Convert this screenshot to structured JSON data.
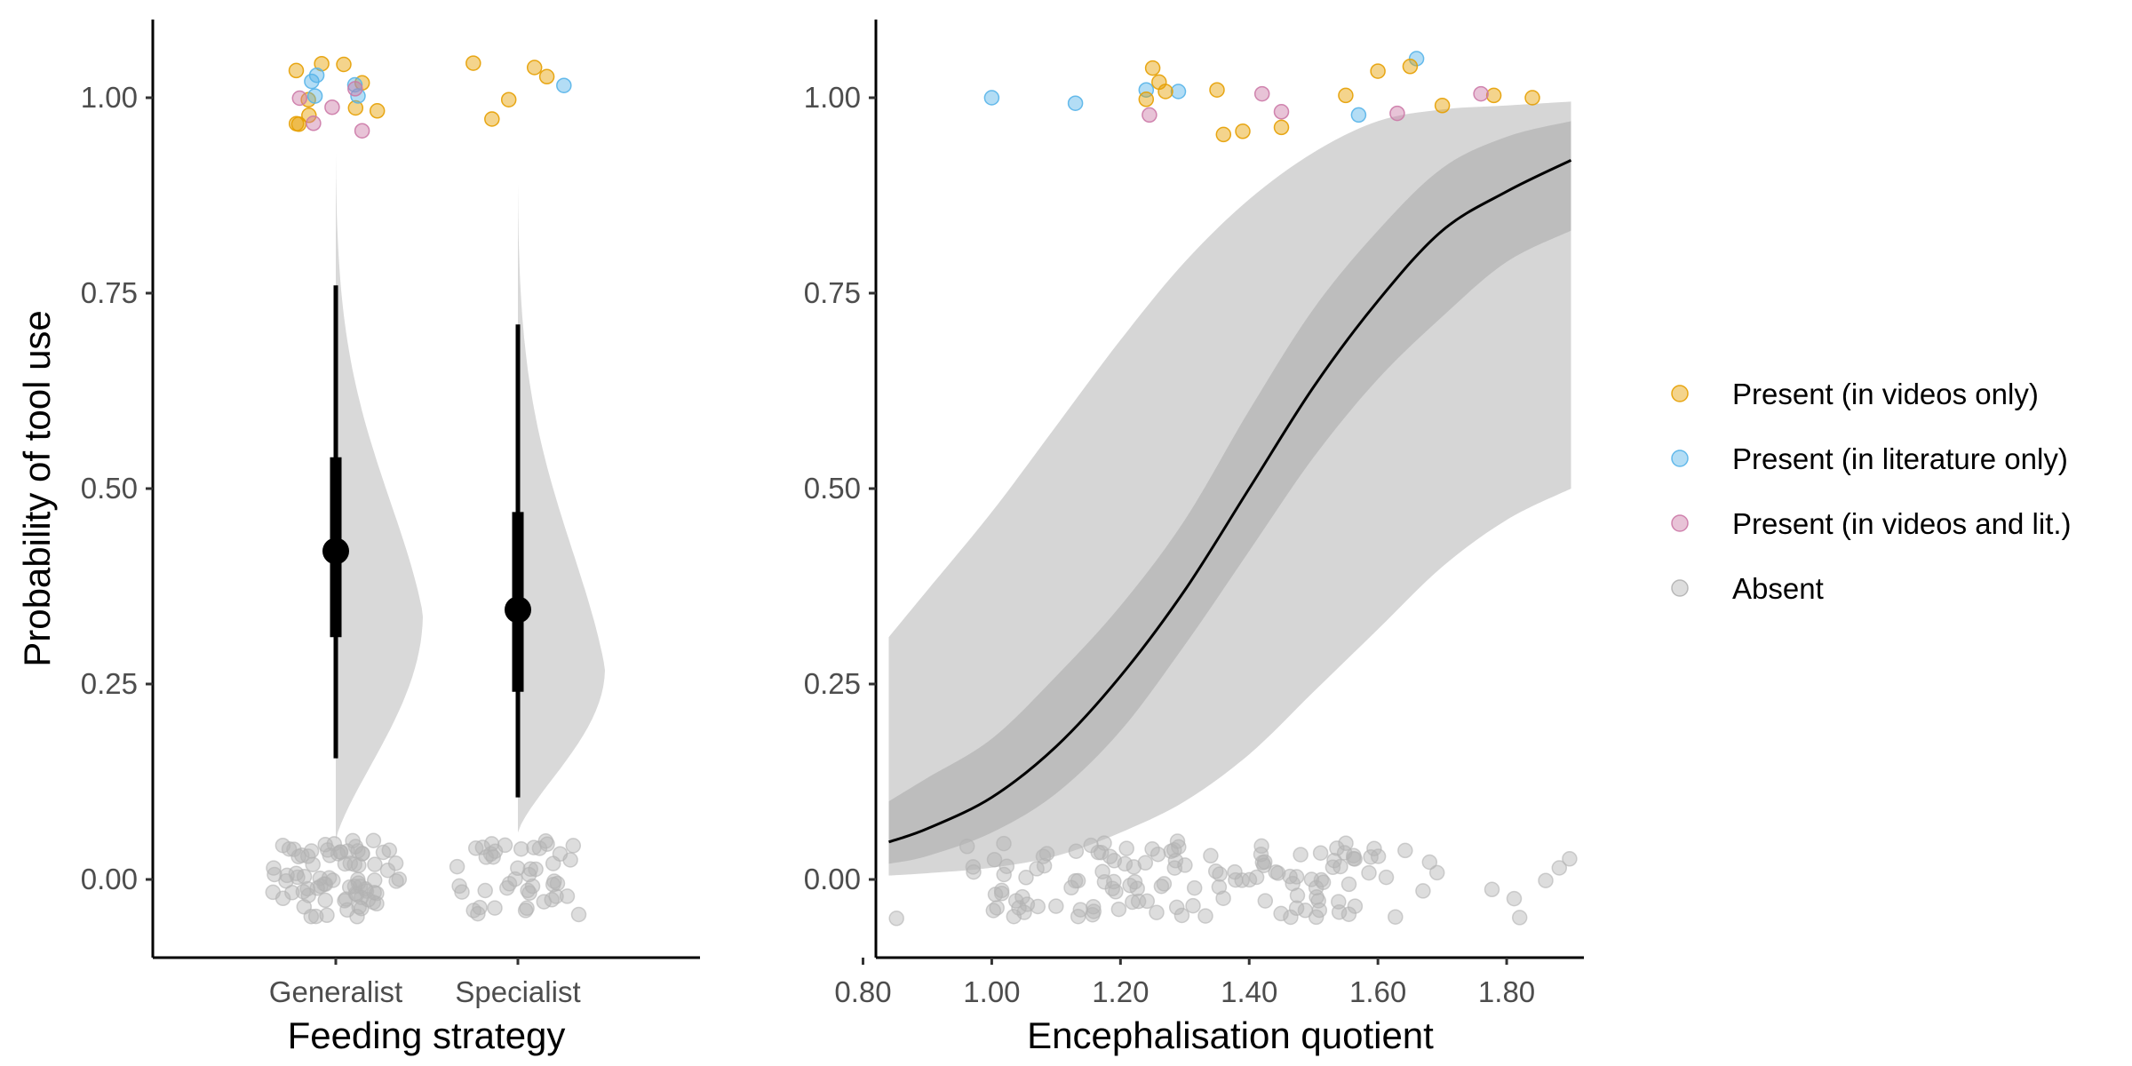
{
  "chart_data": [
    {
      "type": "violin",
      "xlabel": "Feeding strategy",
      "ylabel": "Probability of tool use",
      "categories": [
        "Generalist",
        "Specialist"
      ],
      "ylim": [
        -0.1,
        1.1
      ],
      "yticks": [
        "0.00",
        "0.25",
        "0.50",
        "0.75",
        "1.00"
      ],
      "estimates": [
        {
          "category": "Generalist",
          "median": 0.42,
          "inner": [
            0.31,
            0.54
          ],
          "outer": [
            0.155,
            0.76
          ],
          "density_range": [
            0.05,
            0.93
          ],
          "mode": 0.34
        },
        {
          "category": "Specialist",
          "median": 0.345,
          "inner": [
            0.24,
            0.47
          ],
          "outer": [
            0.105,
            0.71
          ],
          "density_range": [
            0.06,
            0.89
          ],
          "mode": 0.27
        }
      ],
      "points": {
        "Generalist": {
          "present_videos": 10,
          "present_literature": 5,
          "present_both": 5,
          "absent": 80
        },
        "Specialist": {
          "present_videos": 5,
          "present_literature": 1,
          "present_both": 0,
          "absent": 45
        }
      }
    },
    {
      "type": "line",
      "xlabel": "Encephalisation quotient",
      "ylabel": "",
      "xlim": [
        0.82,
        1.92
      ],
      "ylim": [
        -0.1,
        1.1
      ],
      "xticks": [
        "0.80",
        "1.00",
        "1.20",
        "1.40",
        "1.60",
        "1.80"
      ],
      "yticks": [
        "0.00",
        "0.25",
        "0.50",
        "0.75",
        "1.00"
      ],
      "fit": {
        "x": [
          0.84,
          0.9,
          1.0,
          1.1,
          1.2,
          1.3,
          1.4,
          1.5,
          1.6,
          1.7,
          1.8,
          1.9
        ],
        "y": [
          0.048,
          0.065,
          0.105,
          0.17,
          0.26,
          0.37,
          0.5,
          0.63,
          0.74,
          0.83,
          0.88,
          0.92
        ]
      },
      "band_inner": {
        "x": [
          0.84,
          0.9,
          1.0,
          1.1,
          1.2,
          1.3,
          1.4,
          1.5,
          1.6,
          1.7,
          1.8,
          1.9
        ],
        "lower": [
          0.02,
          0.03,
          0.06,
          0.11,
          0.19,
          0.3,
          0.42,
          0.54,
          0.64,
          0.72,
          0.79,
          0.83
        ],
        "upper": [
          0.1,
          0.13,
          0.18,
          0.26,
          0.35,
          0.46,
          0.6,
          0.73,
          0.83,
          0.91,
          0.95,
          0.97
        ]
      },
      "band_outer": {
        "x": [
          0.84,
          0.9,
          1.0,
          1.1,
          1.2,
          1.3,
          1.4,
          1.5,
          1.6,
          1.7,
          1.8,
          1.9
        ],
        "lower": [
          0.005,
          0.008,
          0.015,
          0.03,
          0.06,
          0.1,
          0.16,
          0.24,
          0.32,
          0.4,
          0.46,
          0.5
        ],
        "upper": [
          0.31,
          0.37,
          0.47,
          0.58,
          0.69,
          0.79,
          0.87,
          0.93,
          0.97,
          0.985,
          0.99,
          0.995
        ]
      },
      "present_points": [
        {
          "x": 1.0,
          "y": 1.0,
          "group": "literature"
        },
        {
          "x": 1.13,
          "y": 0.993,
          "group": "literature"
        },
        {
          "x": 1.24,
          "y": 1.01,
          "group": "literature"
        },
        {
          "x": 1.29,
          "y": 1.008,
          "group": "literature"
        },
        {
          "x": 1.57,
          "y": 0.978,
          "group": "literature"
        },
        {
          "x": 1.66,
          "y": 1.05,
          "group": "literature"
        },
        {
          "x": 1.24,
          "y": 0.998,
          "group": "videos"
        },
        {
          "x": 1.25,
          "y": 1.038,
          "group": "videos"
        },
        {
          "x": 1.26,
          "y": 1.02,
          "group": "videos"
        },
        {
          "x": 1.27,
          "y": 1.008,
          "group": "videos"
        },
        {
          "x": 1.35,
          "y": 1.01,
          "group": "videos"
        },
        {
          "x": 1.36,
          "y": 0.953,
          "group": "videos"
        },
        {
          "x": 1.39,
          "y": 0.957,
          "group": "videos"
        },
        {
          "x": 1.45,
          "y": 0.962,
          "group": "videos"
        },
        {
          "x": 1.55,
          "y": 1.003,
          "group": "videos"
        },
        {
          "x": 1.6,
          "y": 1.034,
          "group": "videos"
        },
        {
          "x": 1.65,
          "y": 1.04,
          "group": "videos"
        },
        {
          "x": 1.7,
          "y": 0.99,
          "group": "videos"
        },
        {
          "x": 1.78,
          "y": 1.003,
          "group": "videos"
        },
        {
          "x": 1.84,
          "y": 1.0,
          "group": "videos"
        },
        {
          "x": 1.245,
          "y": 0.978,
          "group": "both"
        },
        {
          "x": 1.42,
          "y": 1.005,
          "group": "both"
        },
        {
          "x": 1.45,
          "y": 0.982,
          "group": "both"
        },
        {
          "x": 1.63,
          "y": 0.98,
          "group": "both"
        },
        {
          "x": 1.76,
          "y": 1.005,
          "group": "both"
        }
      ],
      "absent_points": {
        "count": 140,
        "x_range": [
          0.84,
          1.9
        ],
        "y_range": [
          -0.05,
          0.05
        ]
      }
    }
  ],
  "legend": {
    "placement": "right",
    "entries": [
      {
        "label": "Present (in videos only)",
        "color": "#E69F00"
      },
      {
        "label": "Present (in literature only)",
        "color": "#56B4E9"
      },
      {
        "label": "Present (in videos and lit.)",
        "color": "#CC79A7"
      },
      {
        "label": "Absent",
        "color": "#B3B3B3"
      }
    ]
  },
  "colors": {
    "videos": "#E69F00",
    "literature": "#56B4E9",
    "both": "#CC79A7",
    "absent": "#B3B3B3",
    "density": "#d9d9d9",
    "band_outer": "#d6d6d6",
    "band_inner": "#bdbdbd",
    "fit_line": "#000000"
  }
}
